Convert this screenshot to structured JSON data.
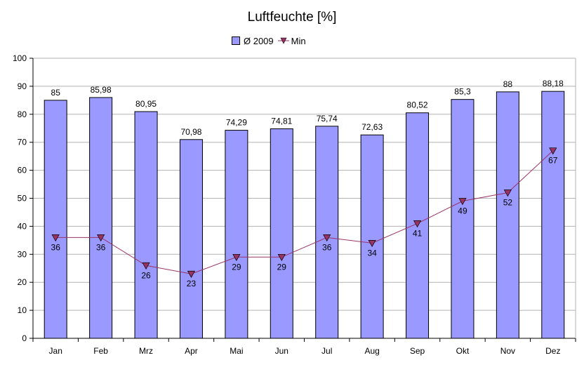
{
  "chart_data": {
    "type": "bar",
    "title": "Luftfeuchte [%]",
    "xlabel": "",
    "ylabel": "",
    "categories": [
      "Jan",
      "Feb",
      "Mrz",
      "Apr",
      "Mai",
      "Jun",
      "Jul",
      "Aug",
      "Sep",
      "Okt",
      "Nov",
      "Dez"
    ],
    "ylim": [
      0,
      100
    ],
    "y_ticks": [
      0,
      10,
      20,
      30,
      40,
      50,
      60,
      70,
      80,
      90,
      100
    ],
    "grid": true,
    "legend_position": "top",
    "series": [
      {
        "name": "Ø 2009",
        "kind": "bar",
        "color": "#9999ff",
        "values": [
          85,
          85.98,
          80.95,
          70.98,
          74.29,
          74.81,
          75.74,
          72.63,
          80.52,
          85.3,
          88,
          88.18
        ],
        "labels": [
          "85",
          "85,98",
          "80,95",
          "70,98",
          "74,29",
          "74,81",
          "75,74",
          "72,63",
          "80,52",
          "85,3",
          "88",
          "88,18"
        ]
      },
      {
        "name": "Min",
        "kind": "line",
        "marker": "triangle-down",
        "color": "#993366",
        "values": [
          36,
          36,
          26,
          23,
          29,
          29,
          36,
          34,
          41,
          49,
          52,
          67
        ],
        "labels": [
          "36",
          "36",
          "26",
          "23",
          "29",
          "29",
          "36",
          "34",
          "41",
          "49",
          "52",
          "67"
        ]
      }
    ]
  }
}
